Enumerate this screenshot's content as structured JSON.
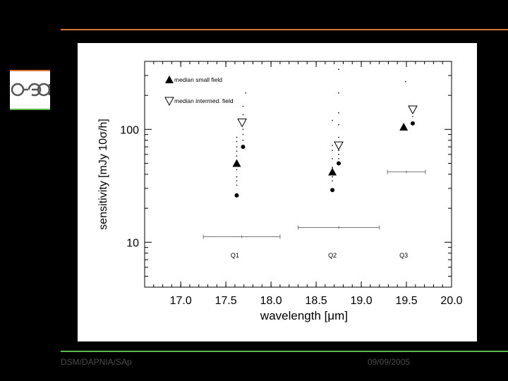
{
  "logo": {
    "text": "cea",
    "icon": "cea-logo-icon"
  },
  "footer": {
    "left": "DSM/DAPNIA/SAp",
    "right": "09/09/2005"
  },
  "colors": {
    "top_line": "#d9773a",
    "bottom_line": "#5fb84a",
    "background": "#000000"
  },
  "chart_data": {
    "type": "scatter",
    "xlabel": "wavelength [μm]",
    "ylabel": "sensitivity [mJy 10σ/h]",
    "xlim": [
      16.6,
      20.0
    ],
    "ylim": [
      4,
      400
    ],
    "yscale": "log",
    "x_ticks": [
      17.0,
      17.5,
      18.0,
      18.5,
      19.0,
      19.5,
      20.0
    ],
    "x_tick_labels": [
      "17.0",
      "17.5",
      "18.0",
      "18.5",
      "19.0",
      "19.5",
      "20.0"
    ],
    "y_ticks": [
      10,
      100
    ],
    "y_tick_labels": [
      "10",
      "100"
    ],
    "legend_position": "top-left",
    "legend": [
      {
        "label": "median small field",
        "marker": "filled-triangle-up"
      },
      {
        "label": "median intermed. field",
        "marker": "open-triangle-down"
      }
    ],
    "series": [
      {
        "name": "median small field",
        "marker": "filled-triangle-up",
        "points": [
          {
            "x": 17.62,
            "y": 50
          },
          {
            "x": 18.68,
            "y": 42
          },
          {
            "x": 19.47,
            "y": 105
          }
        ]
      },
      {
        "name": "median intermed. field",
        "marker": "open-triangle-down",
        "points": [
          {
            "x": 17.68,
            "y": 115
          },
          {
            "x": 18.75,
            "y": 72
          },
          {
            "x": 19.57,
            "y": 150
          }
        ]
      },
      {
        "marker": "filled-circle",
        "points": [
          {
            "x": 17.62,
            "y": 26
          },
          {
            "x": 17.69,
            "y": 70
          },
          {
            "x": 18.68,
            "y": 29
          },
          {
            "x": 18.75,
            "y": 50
          },
          {
            "x": 19.57,
            "y": 113
          }
        ]
      },
      {
        "marker": "dot",
        "points": [
          {
            "x": 17.62,
            "y": 32
          },
          {
            "x": 17.62,
            "y": 35
          },
          {
            "x": 17.62,
            "y": 38
          },
          {
            "x": 17.62,
            "y": 44
          },
          {
            "x": 17.62,
            "y": 58
          },
          {
            "x": 17.62,
            "y": 64
          },
          {
            "x": 17.62,
            "y": 70
          },
          {
            "x": 17.62,
            "y": 78
          },
          {
            "x": 17.62,
            "y": 85
          },
          {
            "x": 17.69,
            "y": 80
          },
          {
            "x": 17.69,
            "y": 90
          },
          {
            "x": 17.69,
            "y": 100
          },
          {
            "x": 17.69,
            "y": 135
          },
          {
            "x": 17.69,
            "y": 160
          },
          {
            "x": 17.72,
            "y": 210
          },
          {
            "x": 18.68,
            "y": 35
          },
          {
            "x": 18.68,
            "y": 38
          },
          {
            "x": 18.68,
            "y": 46
          },
          {
            "x": 18.68,
            "y": 55
          },
          {
            "x": 18.68,
            "y": 65
          },
          {
            "x": 18.68,
            "y": 72
          },
          {
            "x": 18.68,
            "y": 120
          },
          {
            "x": 18.75,
            "y": 55
          },
          {
            "x": 18.75,
            "y": 60
          },
          {
            "x": 18.75,
            "y": 65
          },
          {
            "x": 18.75,
            "y": 85
          },
          {
            "x": 18.75,
            "y": 110
          },
          {
            "x": 18.75,
            "y": 140
          },
          {
            "x": 18.75,
            "y": 210
          },
          {
            "x": 18.75,
            "y": 340
          },
          {
            "x": 19.47,
            "y": 110
          },
          {
            "x": 19.49,
            "y": 265
          },
          {
            "x": 19.57,
            "y": 130
          },
          {
            "x": 19.57,
            "y": 140
          }
        ]
      }
    ],
    "bandpasses": [
      {
        "label": "Q1",
        "x_start": 17.25,
        "x_end": 18.1,
        "y": 11.2
      },
      {
        "label": "Q2",
        "x_start": 18.3,
        "x_end": 19.2,
        "y": 13.5
      },
      {
        "label": "Q3",
        "x_start": 19.29,
        "x_end": 19.71,
        "y": 42
      }
    ]
  }
}
